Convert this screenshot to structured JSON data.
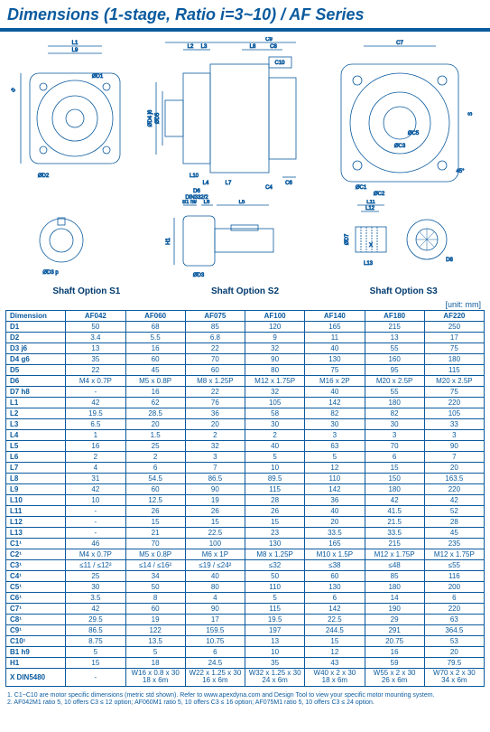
{
  "title": "Dimensions (1-stage, Ratio i=3~10) / AF Series",
  "unit_label": "[unit: mm]",
  "shaft_labels": {
    "s1": "Shaft Option S1",
    "s2": "Shaft Option S2",
    "s3": "Shaft Option S3"
  },
  "diagram_labels": {
    "L9": "L9",
    "L1": "L1",
    "D1": "ØD1",
    "D2": "ØD2",
    "D3p": "ØD3 p",
    "D4": "ØD4 j6",
    "D5": "ØD5",
    "L2": "L2",
    "L3": "L3",
    "L8": "L8",
    "C8": "C8",
    "C9": "C9",
    "C10": "C10",
    "L10": "L10",
    "L4": "L4",
    "L7": "L7",
    "C4": "C4",
    "C6": "C6",
    "D6": "D6",
    "DIN332": "DIN332/2",
    "B1": "B1 h9",
    "L6": "L6",
    "L5": "L5",
    "H1": "H1",
    "D3": "ØD3",
    "C1": "ØC1",
    "C2": "ØC2",
    "C3": "ØC3",
    "C5": "ØC5",
    "C7": "C7",
    "S": "S",
    "a45": "45°",
    "L11": "L11",
    "L12": "L12",
    "D7": "ØD7",
    "X": "X",
    "L13": "L13",
    "D8": "D8"
  },
  "table": {
    "columns": [
      "Dimension",
      "AF042",
      "AF060",
      "AF075",
      "AF100",
      "AF140",
      "AF180",
      "AF220"
    ],
    "rows": [
      [
        "D1",
        "50",
        "68",
        "85",
        "120",
        "165",
        "215",
        "250"
      ],
      [
        "D2",
        "3.4",
        "5.5",
        "6.8",
        "9",
        "11",
        "13",
        "17"
      ],
      [
        "D3  j6",
        "13",
        "16",
        "22",
        "32",
        "40",
        "55",
        "75"
      ],
      [
        "D4  g6",
        "35",
        "60",
        "70",
        "90",
        "130",
        "160",
        "180"
      ],
      [
        "D5",
        "22",
        "45",
        "60",
        "80",
        "75",
        "95",
        "115"
      ],
      [
        "D6",
        "M4 x 0.7P",
        "M5 x 0.8P",
        "M8 x 1.25P",
        "M12 x 1.75P",
        "M16 x 2P",
        "M20 x 2.5P",
        "M20 x 2.5P"
      ],
      [
        "D7  h8",
        "-",
        "16",
        "22",
        "32",
        "40",
        "55",
        "75"
      ],
      [
        "L1",
        "42",
        "62",
        "76",
        "105",
        "142",
        "180",
        "220"
      ],
      [
        "L2",
        "19.5",
        "28.5",
        "36",
        "58",
        "82",
        "82",
        "105"
      ],
      [
        "L3",
        "6.5",
        "20",
        "20",
        "30",
        "30",
        "30",
        "33"
      ],
      [
        "L4",
        "1",
        "1.5",
        "2",
        "2",
        "3",
        "3",
        "3"
      ],
      [
        "L5",
        "16",
        "25",
        "32",
        "40",
        "63",
        "70",
        "90"
      ],
      [
        "L6",
        "2",
        "2",
        "3",
        "5",
        "5",
        "6",
        "7"
      ],
      [
        "L7",
        "4",
        "6",
        "7",
        "10",
        "12",
        "15",
        "20"
      ],
      [
        "L8",
        "31",
        "54.5",
        "86.5",
        "89.5",
        "110",
        "150",
        "163.5"
      ],
      [
        "L9",
        "42",
        "60",
        "90",
        "115",
        "142",
        "180",
        "220"
      ],
      [
        "L10",
        "10",
        "12.5",
        "19",
        "28",
        "36",
        "42",
        "42"
      ],
      [
        "L11",
        "-",
        "26",
        "26",
        "26",
        "40",
        "41.5",
        "52"
      ],
      [
        "L12",
        "-",
        "15",
        "15",
        "15",
        "20",
        "21.5",
        "28"
      ],
      [
        "L13",
        "-",
        "21",
        "22.5",
        "23",
        "33.5",
        "33.5",
        "45"
      ],
      [
        "C1¹",
        "46",
        "70",
        "100",
        "130",
        "165",
        "215",
        "235"
      ],
      [
        "C2¹",
        "M4 x 0.7P",
        "M5 x 0.8P",
        "M6 x 1P",
        "M8 x 1.25P",
        "M10 x 1.5P",
        "M12 x 1.75P",
        "M12 x 1.75P"
      ],
      [
        "C3¹",
        "≤11 / ≤12²",
        "≤14 / ≤16²",
        "≤19 / ≤24²",
        "≤32",
        "≤38",
        "≤48",
        "≤55"
      ],
      [
        "C4¹",
        "25",
        "34",
        "40",
        "50",
        "60",
        "85",
        "116"
      ],
      [
        "C5¹",
        "30",
        "50",
        "80",
        "110",
        "130",
        "180",
        "200"
      ],
      [
        "C6¹",
        "3.5",
        "8",
        "4",
        "5",
        "6",
        "14",
        "6"
      ],
      [
        "C7¹",
        "42",
        "60",
        "90",
        "115",
        "142",
        "190",
        "220"
      ],
      [
        "C8¹",
        "29.5",
        "19",
        "17",
        "19.5",
        "22.5",
        "29",
        "63"
      ],
      [
        "C9¹",
        "86.5",
        "122",
        "159.5",
        "197",
        "244.5",
        "291",
        "364.5"
      ],
      [
        "C10¹",
        "8.75",
        "13.5",
        "10.75",
        "13",
        "15",
        "20.75",
        "53"
      ],
      [
        "B1  h9",
        "5",
        "5",
        "6",
        "10",
        "12",
        "16",
        "20"
      ],
      [
        "H1",
        "15",
        "18",
        "24.5",
        "35",
        "43",
        "59",
        "79.5"
      ],
      [
        "X DIN5480",
        "-",
        "W16 x 0.8 x 30 x 18 x 6m",
        "W22 x 1.25 x 30 x 16 x 6m",
        "W32 x 1.25 x 30 x 24 x 6m",
        "W40 x 2 x 30 x 18 x 6m",
        "W55 x 2 x 30 x 26 x 6m",
        "W70 x 2 x 30 x 34 x 6m"
      ]
    ]
  },
  "footnotes": {
    "f1": "1. C1~C10 are motor specific dimensions (metric std shown).  Refer to www.apexdyna.com and Design Tool to view your specific motor mounting system.",
    "f2": "2. AF042M1 ratio 5, 10 offers C3 ≤ 12 option; AF060M1 ratio 5, 10 offers C3 ≤ 16 option; AF075M1 ratio 5, 10 offers C3 ≤ 24 option."
  },
  "colors": {
    "brand": "#0a5a9e",
    "line": "#0a5a9e",
    "bg": "#ffffff"
  }
}
